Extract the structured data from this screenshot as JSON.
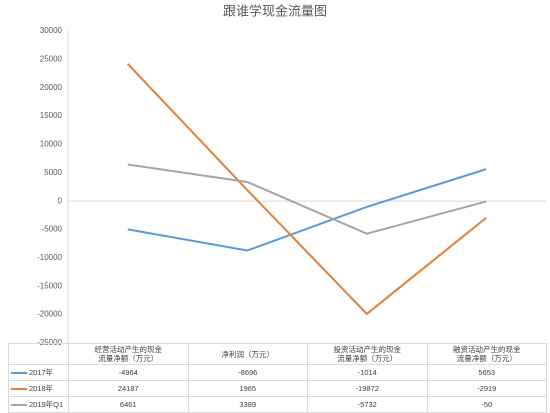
{
  "chart_data": {
    "type": "line",
    "title": "跟谁学现金流量图",
    "categories": [
      "经营活动产生的现金流量净额（万元）",
      "净利润（万元）",
      "投资活动产生的现金流量净额（万元）",
      "融资活动产生的现金流量净额（万元）"
    ],
    "series": [
      {
        "name": "2017年",
        "color": "#5b9bd5",
        "values": [
          -4964,
          -8696,
          -1014,
          5653
        ]
      },
      {
        "name": "2018年",
        "color": "#ed7d31",
        "values": [
          24187,
          1965,
          -19872,
          -2919
        ]
      },
      {
        "name": "2019年Q1",
        "color": "#a5a5a5",
        "values": [
          6461,
          3389,
          -5732,
          -50
        ]
      }
    ],
    "ylim": [
      -25000,
      30000
    ],
    "yticks": [
      -25000,
      -20000,
      -15000,
      -10000,
      -5000,
      0,
      5000,
      10000,
      15000,
      20000,
      25000,
      30000
    ],
    "grid": false
  }
}
